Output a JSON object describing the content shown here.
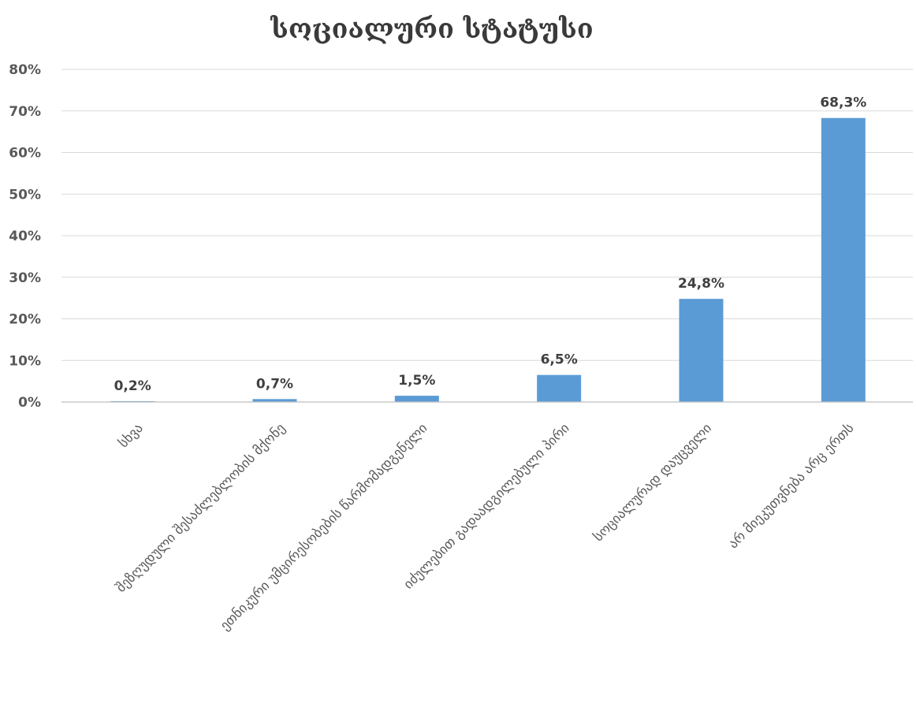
{
  "chart_data": {
    "type": "bar",
    "title": "სოციალური სტატუსი",
    "xlabel": "",
    "ylabel": "",
    "categories": [
      "სხვა",
      "შეზღუდული შესაძლებლობის მქონე",
      "ეთნიკური უმცირესობების წარმომადგენელი",
      "იძულებით გადაადგილებული პირი",
      "სოციალურად დაუცველი",
      "არ მიეკუთვნება არც ერთს"
    ],
    "values": [
      0.2,
      0.7,
      1.5,
      6.5,
      24.8,
      68.3
    ],
    "data_labels": [
      "0,2%",
      "0,7%",
      "1,5%",
      "6,5%",
      "24,8%",
      "68,3%"
    ],
    "ylim": [
      0,
      80
    ],
    "y_ticks": [
      0,
      10,
      20,
      30,
      40,
      50,
      60,
      70,
      80
    ],
    "y_tick_labels": [
      "0%",
      "10%",
      "20%",
      "30%",
      "40%",
      "50%",
      "60%",
      "70%",
      "80%"
    ],
    "bar_color": "#5b9bd5",
    "grid": true,
    "legend": "none"
  }
}
